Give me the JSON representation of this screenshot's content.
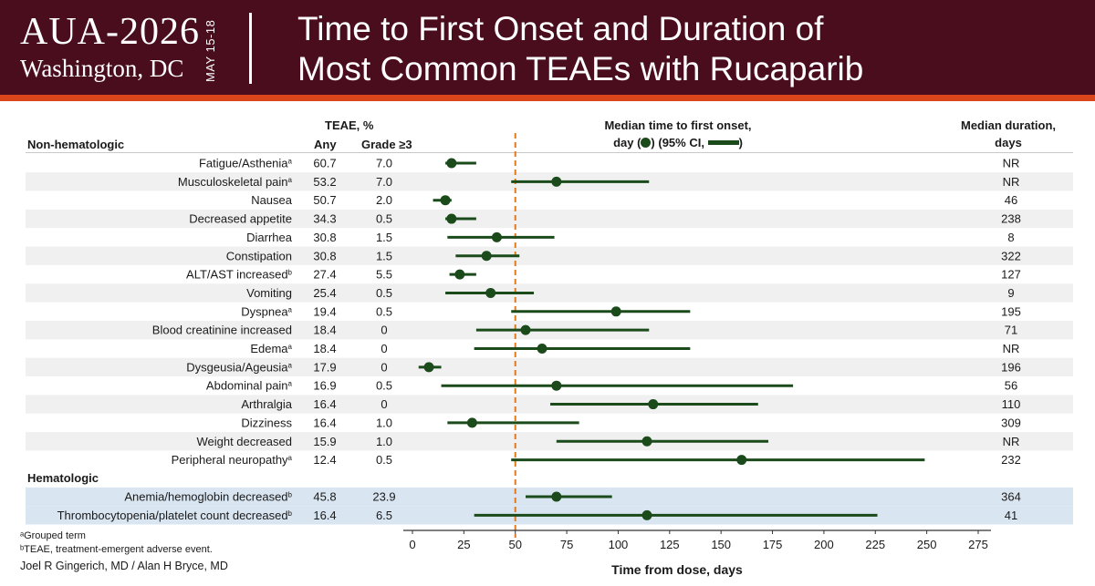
{
  "header": {
    "logo_main": "AUA-2026",
    "logo_city": "Washington, DC",
    "logo_date": "MAY 15-18",
    "title_line1": "Time to First Onset and Duration of",
    "title_line2": "Most Common TEAEs with Rucaparib"
  },
  "columns": {
    "teae_label": "TEAE, %",
    "any_label": "Any",
    "grade_label": "Grade ≥3",
    "section_nonheme": "Non-hematologic",
    "section_heme": "Hematologic",
    "onset_line1": "Median time to first onset,",
    "onset_line2_a": "day (",
    "onset_line2_b": ") (95% CI,",
    "onset_line2_c": ")",
    "duration_line1": "Median duration,",
    "duration_line2": "days"
  },
  "footnotes": {
    "a": "ᵃGrouped term",
    "b": "ᵇTEAE, treatment-emergent adverse event.",
    "authors": "Joel R Gingerich, MD / Alan H Bryce, MD"
  },
  "colors": {
    "marker": "#1b4a1b",
    "reference_line": "#e07a1f",
    "row_stripe": "#f0f0f0",
    "heme_row": "#d9e6f2",
    "header_bg": "#4a0d1e",
    "header_stripe": "#d9461b"
  },
  "chart_data": {
    "type": "forest",
    "xlabel": "Time from dose, days",
    "xlim": [
      0,
      275
    ],
    "xticks": [
      0,
      25,
      50,
      75,
      100,
      125,
      150,
      175,
      200,
      225,
      250,
      275
    ],
    "reference_line": 50,
    "rows": [
      {
        "group": "nonheme",
        "label": "Fatigue/Asthenia",
        "sup": "a",
        "any": "60.7",
        "grade3": "7.0",
        "median": 19,
        "ci": [
          16,
          31
        ],
        "duration": "NR"
      },
      {
        "group": "nonheme",
        "label": "Musculoskeletal pain",
        "sup": "a",
        "any": "53.2",
        "grade3": "7.0",
        "median": 70,
        "ci": [
          48,
          115
        ],
        "duration": "NR"
      },
      {
        "group": "nonheme",
        "label": "Nausea",
        "sup": "",
        "any": "50.7",
        "grade3": "2.0",
        "median": 16,
        "ci": [
          10,
          19
        ],
        "duration": "46"
      },
      {
        "group": "nonheme",
        "label": "Decreased appetite",
        "sup": "",
        "any": "34.3",
        "grade3": "0.5",
        "median": 19,
        "ci": [
          16,
          31
        ],
        "duration": "238"
      },
      {
        "group": "nonheme",
        "label": "Diarrhea",
        "sup": "",
        "any": "30.8",
        "grade3": "1.5",
        "median": 41,
        "ci": [
          17,
          69
        ],
        "duration": "8"
      },
      {
        "group": "nonheme",
        "label": "Constipation",
        "sup": "",
        "any": "30.8",
        "grade3": "1.5",
        "median": 36,
        "ci": [
          21,
          52
        ],
        "duration": "322"
      },
      {
        "group": "nonheme",
        "label": "ALT/AST increased",
        "sup": "b",
        "any": "27.4",
        "grade3": "5.5",
        "median": 23,
        "ci": [
          18,
          31
        ],
        "duration": "127"
      },
      {
        "group": "nonheme",
        "label": "Vomiting",
        "sup": "",
        "any": "25.4",
        "grade3": "0.5",
        "median": 38,
        "ci": [
          16,
          59
        ],
        "duration": "9"
      },
      {
        "group": "nonheme",
        "label": "Dyspnea",
        "sup": "a",
        "any": "19.4",
        "grade3": "0.5",
        "median": 99,
        "ci": [
          48,
          135
        ],
        "duration": "195"
      },
      {
        "group": "nonheme",
        "label": "Blood creatinine increased",
        "sup": "",
        "any": "18.4",
        "grade3": "0",
        "median": 55,
        "ci": [
          31,
          115
        ],
        "duration": "71"
      },
      {
        "group": "nonheme",
        "label": "Edema",
        "sup": "a",
        "any": "18.4",
        "grade3": "0",
        "median": 63,
        "ci": [
          30,
          135
        ],
        "duration": "NR"
      },
      {
        "group": "nonheme",
        "label": "Dysgeusia/Ageusia",
        "sup": "a",
        "any": "17.9",
        "grade3": "0",
        "median": 8,
        "ci": [
          3,
          14
        ],
        "duration": "196"
      },
      {
        "group": "nonheme",
        "label": "Abdominal pain",
        "sup": "a",
        "any": "16.9",
        "grade3": "0.5",
        "median": 70,
        "ci": [
          14,
          185
        ],
        "duration": "56"
      },
      {
        "group": "nonheme",
        "label": "Arthralgia",
        "sup": "",
        "any": "16.4",
        "grade3": "0",
        "median": 117,
        "ci": [
          67,
          168
        ],
        "duration": "110"
      },
      {
        "group": "nonheme",
        "label": "Dizziness",
        "sup": "",
        "any": "16.4",
        "grade3": "1.0",
        "median": 29,
        "ci": [
          17,
          81
        ],
        "duration": "309"
      },
      {
        "group": "nonheme",
        "label": "Weight decreased",
        "sup": "",
        "any": "15.9",
        "grade3": "1.0",
        "median": 114,
        "ci": [
          70,
          173
        ],
        "duration": "NR"
      },
      {
        "group": "nonheme",
        "label": "Peripheral neuropathy",
        "sup": "a",
        "any": "12.4",
        "grade3": "0.5",
        "median": 160,
        "ci": [
          48,
          249
        ],
        "duration": "232"
      },
      {
        "group": "heme",
        "label": "Anemia/hemoglobin decreased",
        "sup": "b",
        "any": "45.8",
        "grade3": "23.9",
        "median": 70,
        "ci": [
          55,
          97
        ],
        "duration": "364"
      },
      {
        "group": "heme",
        "label": "Thrombocytopenia/platelet count decreased",
        "sup": "b",
        "any": "16.4",
        "grade3": "6.5",
        "median": 114,
        "ci": [
          30,
          226
        ],
        "duration": "41"
      }
    ]
  }
}
